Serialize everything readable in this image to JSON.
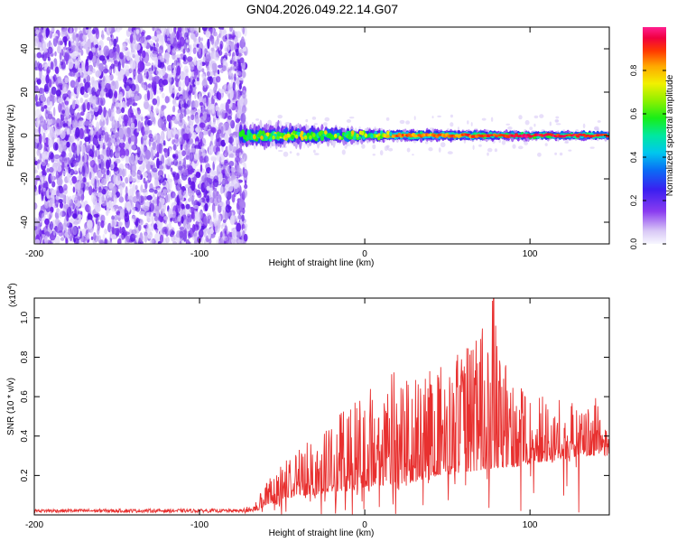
{
  "title": "GN04.2026.049.22.14.G07",
  "colors": {
    "line": "#e8302f",
    "axis": "#000000",
    "spec_low": "#c9b6f2",
    "spec_mid": "#7a2cf0",
    "spec_strong": "#5a12e6"
  },
  "chart_data": [
    {
      "type": "heatmap",
      "name": "spectrogram",
      "title": "GN04.2026.049.22.14.G07",
      "xlabel": "Height of straight line (km)",
      "ylabel": "Frequency (Hz)",
      "xlim": [
        -200,
        148
      ],
      "ylim": [
        -50,
        50
      ],
      "xticks": [
        -200,
        -100,
        0,
        100
      ],
      "yticks": [
        -40,
        -20,
        0,
        20,
        40
      ],
      "noise_region_x": [
        -200,
        -72
      ],
      "signal_track": {
        "x_start": -75,
        "x_end": 148,
        "center_frequency": 0,
        "segments": [
          {
            "x": -75,
            "halfwidth": 5,
            "amp": 0.55
          },
          {
            "x": -50,
            "halfwidth": 5,
            "amp": 0.5
          },
          {
            "x": -25,
            "halfwidth": 4,
            "amp": 0.55
          },
          {
            "x": 0,
            "halfwidth": 3,
            "amp": 0.55
          },
          {
            "x": 15,
            "halfwidth": 2.5,
            "amp": 0.85
          },
          {
            "x": 50,
            "halfwidth": 2.5,
            "amp": 0.85
          },
          {
            "x": 100,
            "halfwidth": 2,
            "amp": 0.95
          },
          {
            "x": 148,
            "halfwidth": 2,
            "amp": 0.9
          }
        ]
      },
      "colorbar": {
        "label": "Normalized spectral amplitude",
        "range": [
          0,
          1
        ],
        "ticks": [
          0.0,
          0.2,
          0.4,
          0.6,
          0.8
        ],
        "tick_labels": [
          "0.0",
          "0.2",
          "0.4",
          "0.6",
          "0.8"
        ]
      }
    },
    {
      "type": "line",
      "name": "snr",
      "xlabel": "Height of straight line (km)",
      "ylabel": "SNR (10 * v/v)",
      "scale_label": "(x10",
      "scale_exponent": "4",
      "scale_close": ")",
      "xlim": [
        -200,
        148
      ],
      "ylim": [
        0,
        1.1
      ],
      "xticks": [
        -200,
        -100,
        0,
        100
      ],
      "yticks": [
        0.2,
        0.4,
        0.6,
        0.8,
        1.0
      ],
      "ytick_labels": [
        "0.2",
        "0.4",
        "0.6",
        "0.8",
        "1.0"
      ],
      "envelope": {
        "x": [
          -200,
          -75,
          -65,
          -60,
          -50,
          -40,
          -30,
          -20,
          -10,
          0,
          10,
          20,
          30,
          40,
          50,
          60,
          70,
          78,
          80,
          90,
          100,
          110,
          120,
          130,
          140,
          148
        ],
        "peak": [
          0.03,
          0.03,
          0.08,
          0.16,
          0.26,
          0.34,
          0.42,
          0.44,
          0.58,
          0.66,
          0.62,
          0.78,
          0.7,
          0.74,
          0.76,
          0.86,
          0.95,
          1.1,
          0.88,
          0.66,
          0.66,
          0.6,
          0.58,
          0.56,
          0.6,
          0.42
        ],
        "base": [
          0.01,
          0.01,
          0.02,
          0.05,
          0.07,
          0.1,
          0.1,
          0.12,
          0.12,
          0.14,
          0.15,
          0.16,
          0.16,
          0.2,
          0.2,
          0.22,
          0.22,
          0.24,
          0.24,
          0.24,
          0.26,
          0.27,
          0.28,
          0.3,
          0.3,
          0.3
        ]
      }
    }
  ]
}
